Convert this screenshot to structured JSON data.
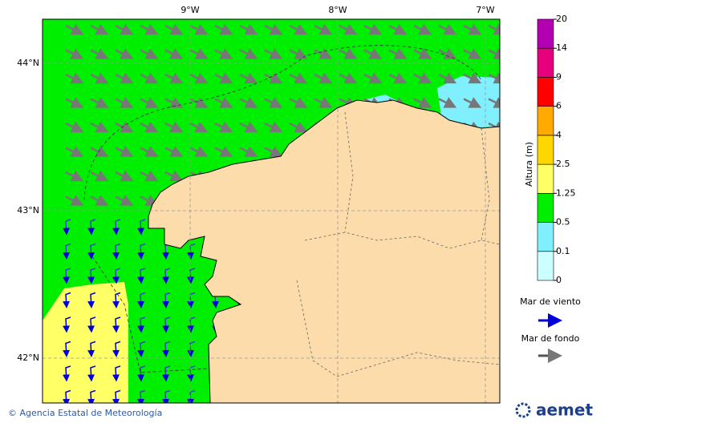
{
  "map": {
    "lon_labels": [
      "9°W",
      "8°W",
      "7°W"
    ],
    "lat_labels": [
      "44°N",
      "43°N",
      "42°N"
    ],
    "colorbar": {
      "title": "Altura (m)",
      "ticks": [
        0,
        0.1,
        0.5,
        1.25,
        2.5,
        4,
        6,
        9,
        14,
        20
      ],
      "colors": [
        "#ccffff",
        "#80f0ff",
        "#00ee00",
        "#ffff66",
        "#ffd700",
        "#ffaa00",
        "#ff0000",
        "#e6007e",
        "#b300b3"
      ]
    },
    "legend": [
      "Mar de viento",
      "Mar de fondo"
    ],
    "footer": "© Agencia Estatal de Meteorología",
    "logo": "aemet"
  }
}
